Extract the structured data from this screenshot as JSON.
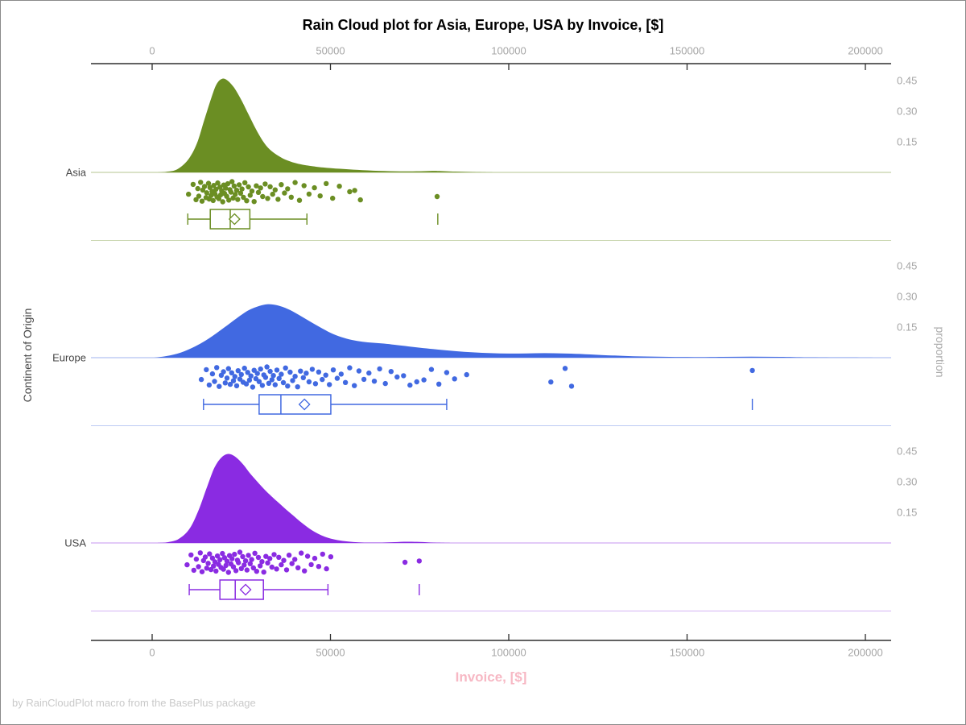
{
  "chart_data": {
    "type": "raincloud",
    "title": "Rain Cloud plot for Asia, Europe, USA by Invoice, [$]",
    "xlabel": "Invoice, [$]",
    "ylabel_left": "Continent of Origin",
    "ylabel_right": "proportion",
    "footnote": "by RainCloudPlot macro from the BasePlus package",
    "x_axis": {
      "ticks": [
        0,
        50000,
        100000,
        150000,
        200000
      ],
      "labels": [
        "0",
        "50000",
        "100000",
        "150000",
        "200000"
      ],
      "range": [
        -17000,
        207000
      ]
    },
    "proportion_axis": {
      "ticks": [
        0.15,
        0.3,
        0.45
      ],
      "labels": [
        "0.15",
        "0.30",
        "0.45"
      ]
    },
    "colors": {
      "axis_line": "#2e2e2e",
      "tick_label": "#a6a6a6",
      "category_label": "#454545",
      "xlabel_pink": "#f7b8c4",
      "footnote_gray": "#c9c9c9"
    },
    "jitter_pattern": [
      0.62,
      0.15,
      0.88,
      0.35,
      0.71,
      0.05,
      0.95,
      0.42,
      0.25,
      0.78,
      0.55,
      0.1,
      0.85,
      0.3,
      0.68,
      0.48,
      0.92,
      0.2,
      0.6,
      0.38,
      0.75,
      0.08,
      0.83,
      0.28,
      0.65,
      0.45,
      0.98,
      0.18,
      0.58,
      0.33,
      0.72,
      0.12,
      0.9,
      0.4,
      0.52,
      0.02,
      0.8,
      0.23,
      0.63,
      0.43,
      0.87,
      0.17,
      0.57,
      0.37,
      0.77,
      0.07,
      0.93,
      0.27,
      0.67,
      0.47,
      0.97,
      0.22,
      0.53,
      0.32,
      0.73,
      0.13,
      0.82,
      0.26,
      0.62,
      0.41,
      0.86,
      0.16,
      0.56,
      0.36,
      0.76,
      0.06,
      0.91,
      0.21,
      0.61,
      0.31,
      0.7,
      0.11,
      0.81,
      0.24,
      0.5,
      0.44,
      0.89,
      0.73,
      0.64,
      0.14,
      0.84,
      0.29,
      0.59,
      0.39,
      0.74,
      0.09,
      0.94,
      0.19,
      0.66,
      0.46,
      0.96,
      0.03,
      0.54,
      0.49,
      0.79,
      0.51
    ],
    "series": [
      {
        "name": "Asia",
        "color": "#6b8e23",
        "density": [
          [
            1000,
            0
          ],
          [
            4000,
            0.003
          ],
          [
            7000,
            0.015
          ],
          [
            10000,
            0.06
          ],
          [
            12500,
            0.14
          ],
          [
            14500,
            0.25
          ],
          [
            16500,
            0.36
          ],
          [
            18000,
            0.43
          ],
          [
            19500,
            0.458
          ],
          [
            21000,
            0.452
          ],
          [
            23000,
            0.415
          ],
          [
            25000,
            0.355
          ],
          [
            27000,
            0.285
          ],
          [
            29000,
            0.215
          ],
          [
            31000,
            0.155
          ],
          [
            33000,
            0.112
          ],
          [
            35500,
            0.08
          ],
          [
            38000,
            0.058
          ],
          [
            41000,
            0.042
          ],
          [
            45000,
            0.03
          ],
          [
            49000,
            0.022
          ],
          [
            54000,
            0.016
          ],
          [
            59000,
            0.011
          ],
          [
            65000,
            0.007
          ],
          [
            71000,
            0.005
          ],
          [
            76000,
            0.006
          ],
          [
            80000,
            0.007
          ],
          [
            85000,
            0.004
          ],
          [
            90000,
            0.002
          ],
          [
            96000,
            0
          ]
        ],
        "rain_values": [
          10200,
          11500,
          12300,
          12800,
          13100,
          13600,
          14000,
          14200,
          14700,
          15100,
          15300,
          15800,
          16000,
          16200,
          16500,
          16800,
          17100,
          17300,
          17600,
          17900,
          18200,
          18400,
          18700,
          19000,
          19200,
          19500,
          19800,
          20100,
          20300,
          20600,
          20900,
          21200,
          21500,
          21800,
          22100,
          22400,
          22700,
          23000,
          23300,
          23700,
          24000,
          24400,
          24800,
          25200,
          25600,
          26000,
          26500,
          27000,
          27500,
          28000,
          28600,
          29200,
          29800,
          30400,
          31000,
          31700,
          32400,
          33100,
          33800,
          34500,
          35300,
          36200,
          37100,
          38000,
          39000,
          40100,
          41300,
          42600,
          44000,
          45500,
          47100,
          48800,
          50600,
          52500,
          55400,
          56800,
          58400,
          79900
        ],
        "box": {
          "min": 10000,
          "q1": 16300,
          "median": 21900,
          "q3": 27400,
          "max": 43400,
          "mean": 23100,
          "outliers": [
            80100
          ]
        }
      },
      {
        "name": "Europe",
        "color": "#4169e1",
        "density": [
          [
            500,
            0
          ],
          [
            4000,
            0.008
          ],
          [
            8000,
            0.025
          ],
          [
            12000,
            0.055
          ],
          [
            16000,
            0.095
          ],
          [
            20000,
            0.145
          ],
          [
            24000,
            0.197
          ],
          [
            27000,
            0.232
          ],
          [
            30000,
            0.253
          ],
          [
            32500,
            0.262
          ],
          [
            35000,
            0.257
          ],
          [
            38000,
            0.239
          ],
          [
            41000,
            0.211
          ],
          [
            44000,
            0.18
          ],
          [
            47000,
            0.15
          ],
          [
            50000,
            0.122
          ],
          [
            53000,
            0.101
          ],
          [
            56000,
            0.087
          ],
          [
            59000,
            0.078
          ],
          [
            62000,
            0.073
          ],
          [
            65000,
            0.069
          ],
          [
            68000,
            0.063
          ],
          [
            72000,
            0.055
          ],
          [
            76000,
            0.047
          ],
          [
            80000,
            0.04
          ],
          [
            85000,
            0.032
          ],
          [
            90000,
            0.026
          ],
          [
            95000,
            0.022
          ],
          [
            100000,
            0.02
          ],
          [
            105000,
            0.021
          ],
          [
            110000,
            0.022
          ],
          [
            115000,
            0.021
          ],
          [
            120000,
            0.018
          ],
          [
            126000,
            0.013
          ],
          [
            132000,
            0.009
          ],
          [
            138000,
            0.006
          ],
          [
            145000,
            0.004
          ],
          [
            152000,
            0.003
          ],
          [
            160000,
            0.004
          ],
          [
            168000,
            0.005
          ],
          [
            176000,
            0.004
          ],
          [
            184000,
            0.002
          ],
          [
            196000,
            0.001
          ],
          [
            207000,
            0
          ]
        ],
        "rain_values": [
          13800,
          15200,
          16000,
          16900,
          17500,
          18100,
          18800,
          19400,
          20000,
          20500,
          21000,
          21400,
          21900,
          22300,
          22800,
          23200,
          23700,
          24100,
          24600,
          25000,
          25500,
          25900,
          26400,
          26800,
          27300,
          27700,
          28200,
          28600,
          29100,
          29500,
          30000,
          30400,
          30900,
          31300,
          31800,
          32200,
          32700,
          33100,
          33600,
          34000,
          34500,
          35000,
          35600,
          36200,
          36800,
          37400,
          38000,
          38700,
          39400,
          40100,
          40800,
          41600,
          42400,
          43200,
          44000,
          44900,
          45800,
          46700,
          47700,
          48700,
          49700,
          50800,
          51900,
          53000,
          54200,
          55400,
          56700,
          58000,
          59400,
          60800,
          62300,
          63800,
          65400,
          67000,
          68700,
          70500,
          72300,
          74200,
          76200,
          78300,
          80400,
          82600,
          84800,
          88200,
          111800,
          115800,
          117600,
          168300
        ],
        "box": {
          "min": 14400,
          "q1": 30000,
          "median": 36100,
          "q3": 50100,
          "max": 82600,
          "mean": 42700,
          "outliers": [
            168300
          ]
        }
      },
      {
        "name": "USA",
        "color": "#8a2be2",
        "density": [
          [
            1500,
            0
          ],
          [
            4500,
            0.004
          ],
          [
            7500,
            0.02
          ],
          [
            10500,
            0.07
          ],
          [
            13000,
            0.16
          ],
          [
            15500,
            0.28
          ],
          [
            17500,
            0.37
          ],
          [
            19500,
            0.42
          ],
          [
            21500,
            0.436
          ],
          [
            23500,
            0.42
          ],
          [
            25500,
            0.385
          ],
          [
            27500,
            0.34
          ],
          [
            29500,
            0.3
          ],
          [
            31500,
            0.262
          ],
          [
            33500,
            0.228
          ],
          [
            35500,
            0.196
          ],
          [
            37500,
            0.165
          ],
          [
            39500,
            0.135
          ],
          [
            41500,
            0.105
          ],
          [
            43500,
            0.078
          ],
          [
            45500,
            0.055
          ],
          [
            47500,
            0.037
          ],
          [
            49500,
            0.024
          ],
          [
            52000,
            0.014
          ],
          [
            55000,
            0.007
          ],
          [
            58000,
            0.003
          ],
          [
            61000,
            0.002
          ],
          [
            64500,
            0.002
          ],
          [
            68000,
            0.004
          ],
          [
            71500,
            0.006
          ],
          [
            75000,
            0.005
          ],
          [
            79000,
            0.002
          ],
          [
            84000,
            0
          ]
        ],
        "rain_values": [
          9800,
          10900,
          11700,
          12400,
          13000,
          13500,
          14000,
          14400,
          14900,
          15300,
          15700,
          16100,
          16500,
          16900,
          17200,
          17600,
          17900,
          18300,
          18600,
          19000,
          19300,
          19700,
          20000,
          20300,
          20700,
          21000,
          21400,
          21700,
          22100,
          22400,
          22800,
          23100,
          23500,
          23900,
          24200,
          24600,
          25000,
          25400,
          25800,
          26200,
          26600,
          27000,
          27500,
          27900,
          28400,
          28800,
          29300,
          29800,
          30300,
          30800,
          31300,
          31900,
          32400,
          33000,
          33600,
          34200,
          34900,
          35500,
          36200,
          36900,
          37700,
          38400,
          39200,
          40000,
          40900,
          41800,
          42700,
          43600,
          44600,
          45600,
          46700,
          47800,
          48900,
          50100,
          70900,
          74900
        ],
        "box": {
          "min": 10400,
          "q1": 19000,
          "median": 23300,
          "q3": 31200,
          "max": 49300,
          "mean": 26200,
          "outliers": [
            74900
          ]
        }
      }
    ]
  }
}
